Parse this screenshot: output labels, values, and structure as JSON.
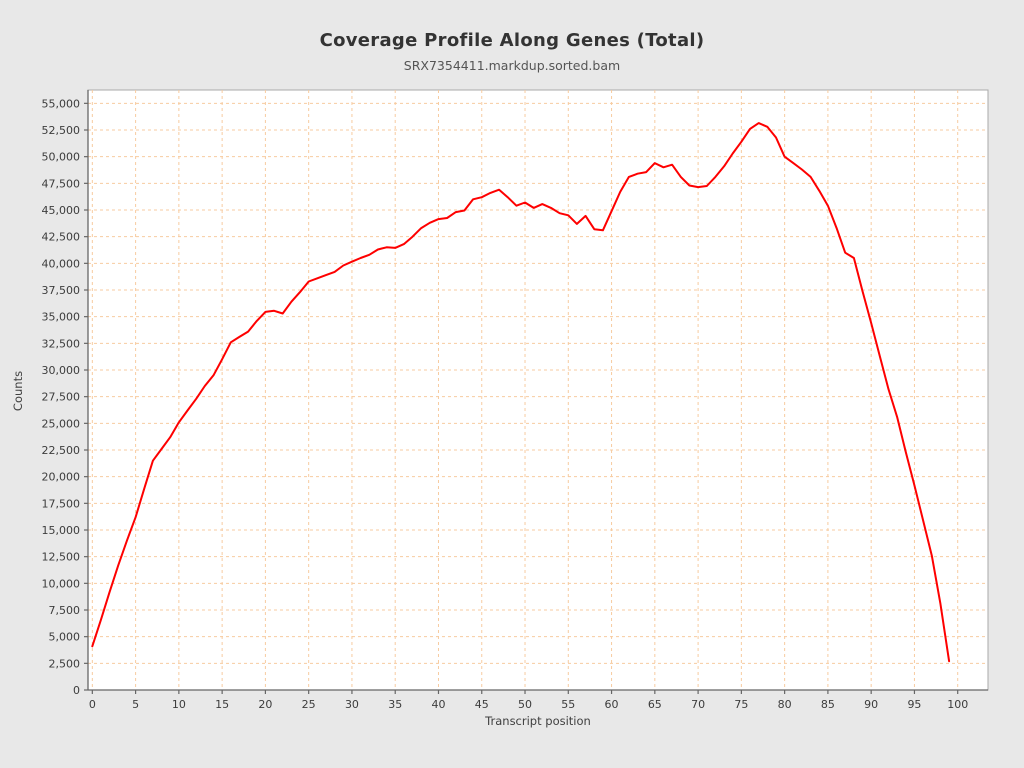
{
  "header": {
    "title": "Coverage Profile Along Genes (Total)",
    "subtitle": "SRX7354411.markdup.sorted.bam"
  },
  "colors": {
    "background": "#e8e8e8",
    "plot_background": "#ffffff",
    "plot_border": "#aaaaaa",
    "axis_line": "#666666",
    "grid_line": "#f7cba0",
    "series_red": "#fe0000",
    "text": "#3c3c3c"
  },
  "chart_data": {
    "type": "line",
    "title": "Coverage Profile Along Genes (Total)",
    "subtitle": "SRX7354411.markdup.sorted.bam",
    "xlabel": "Transcript position",
    "ylabel": "Counts",
    "xlim": [
      -0.5,
      103.5
    ],
    "ylim": [
      0,
      56250
    ],
    "grid": "dashed",
    "legend": "none",
    "x_ticks": [
      0,
      5,
      10,
      15,
      20,
      25,
      30,
      35,
      40,
      45,
      50,
      55,
      60,
      65,
      70,
      75,
      80,
      85,
      90,
      95,
      100
    ],
    "y_ticks": [
      0,
      2500,
      5000,
      7500,
      10000,
      12500,
      15000,
      17500,
      20000,
      22500,
      25000,
      27500,
      30000,
      32500,
      35000,
      37500,
      40000,
      42500,
      45000,
      47500,
      50000,
      52500,
      55000
    ],
    "series": [
      {
        "name": "Total coverage",
        "color": "#fe0000",
        "x_start": 0,
        "x_step": 1,
        "values": [
          4100,
          6600,
          9200,
          11700,
          14000,
          16200,
          18900,
          21500,
          22600,
          23700,
          25100,
          26200,
          27300,
          28500,
          29500,
          31000,
          32600,
          33100,
          33600,
          34600,
          35450,
          35550,
          35300,
          36400,
          37300,
          38300,
          38600,
          38900,
          39200,
          39800,
          40150,
          40500,
          40800,
          41300,
          41500,
          41450,
          41800,
          42500,
          43300,
          43800,
          44150,
          44250,
          44800,
          44950,
          46000,
          46200,
          46600,
          46900,
          46200,
          45400,
          45700,
          45200,
          45550,
          45200,
          44700,
          44500,
          43700,
          44450,
          43200,
          43100,
          44900,
          46700,
          48100,
          48400,
          48550,
          49400,
          49000,
          49250,
          48100,
          47300,
          47150,
          47250,
          48100,
          49100,
          50300,
          51400,
          52600,
          53150,
          52800,
          51800,
          50000,
          49400,
          48800,
          48100,
          46800,
          45400,
          43300,
          41000,
          40500,
          37400,
          34400,
          31300,
          28200,
          25600,
          22300,
          19200,
          15900,
          12600,
          8100,
          2700
        ]
      }
    ]
  }
}
